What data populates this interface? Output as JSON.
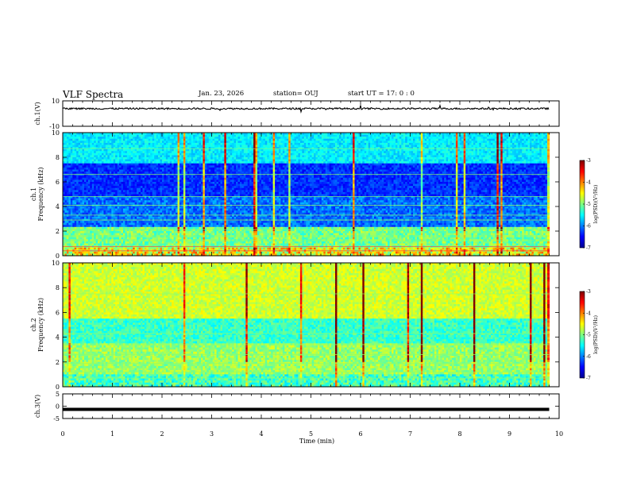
{
  "header": {
    "title": "VLF Spectra",
    "date": "Jan. 23, 2026",
    "station": "station= OUJ",
    "start": "start  UT  =   17: 0  : 0"
  },
  "chart_data": [
    {
      "type": "line",
      "name": "ch.1 waveform",
      "ylabel": "ch.1(V)",
      "ylim": [
        -10,
        10
      ],
      "yticks": [
        "10",
        "-10"
      ],
      "x": [
        0,
        1,
        2,
        3,
        4,
        5,
        6,
        7,
        8,
        9,
        9.8
      ],
      "values": [
        4,
        4,
        4.5,
        4,
        4,
        4,
        4,
        4,
        4,
        4,
        4
      ],
      "xlim": [
        0,
        10
      ]
    },
    {
      "type": "heatmap",
      "name": "ch.1 spectrogram",
      "ylabel": "ch.1\nFrequency  (kHz)",
      "ylim": [
        0,
        10
      ],
      "yticks": [
        "0",
        "2",
        "4",
        "6",
        "8",
        "10"
      ],
      "xlim": [
        0,
        10
      ],
      "data_end_min": 9.8,
      "colorbar": {
        "label": "log(PSD)(V²/Hz)",
        "range": [
          -7,
          -3
        ],
        "ticks": [
          "-3",
          "-4",
          "-5",
          "-6",
          "-7"
        ]
      }
    },
    {
      "type": "heatmap",
      "name": "ch.2 spectrogram",
      "ylabel": "ch.2\nFrequency  (kHz)",
      "ylim": [
        0,
        10
      ],
      "yticks": [
        "0",
        "2",
        "4",
        "6",
        "8",
        "10"
      ],
      "xlim": [
        0,
        10
      ],
      "data_end_min": 9.8,
      "colorbar": {
        "label": "log(PSD)(V²/Hz)",
        "range": [
          -7,
          -3
        ],
        "ticks": [
          "-3",
          "-4",
          "-5",
          "-6",
          "-7"
        ]
      }
    },
    {
      "type": "line",
      "name": "ch.3 waveform",
      "ylabel": "ch.3(V)",
      "ylim": [
        -5,
        5
      ],
      "yticks": [
        "5",
        "0",
        "-5"
      ],
      "x": [
        0,
        9.8
      ],
      "values": [
        -1.3,
        -1.3
      ],
      "xlim": [
        0,
        10
      ]
    }
  ],
  "xaxis": {
    "label": "Time  (min)",
    "ticks": [
      "0",
      "1",
      "2",
      "3",
      "4",
      "5",
      "6",
      "7",
      "8",
      "9",
      "10"
    ]
  },
  "colors": {
    "jet": [
      "#00008f",
      "#0000ff",
      "#0080ff",
      "#00ffff",
      "#80ff80",
      "#ffff00",
      "#ff8000",
      "#ff0000",
      "#800000"
    ]
  }
}
